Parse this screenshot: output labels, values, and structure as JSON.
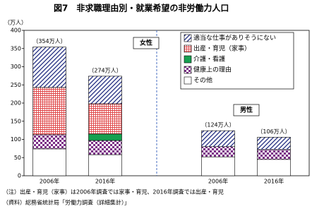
{
  "chart_data": {
    "type": "stacked-bar",
    "title": "図7　非求職理由別・就業希望の非労働力人口",
    "y_label": "（万人）",
    "categories": [
      "2006年",
      "2016年",
      "2006年",
      "2016年"
    ],
    "panels": [
      {
        "label": "女性",
        "categories": [
          0,
          1
        ]
      },
      {
        "label": "男性",
        "categories": [
          2,
          3
        ]
      }
    ],
    "total_labels": [
      "（354万人）",
      "（274万人）",
      "（124万人）",
      "（106万人）"
    ],
    "series": [
      {
        "name": "適当な仕事がありそうにない",
        "color": "#1f2a80",
        "pattern": "hatch",
        "values": [
          111,
          76,
          44,
          34
        ]
      },
      {
        "name": "出産・育児（家事）",
        "color": "#e0484a",
        "pattern": "grid",
        "values": [
          130,
          83,
          0,
          0
        ]
      },
      {
        "name": "介護・看護",
        "color": "#16a050",
        "pattern": "solid",
        "values": [
          0,
          18,
          0,
          0
        ]
      },
      {
        "name": "健康上の理由",
        "color": "#7b2f86",
        "pattern": "checker",
        "values": [
          39,
          39,
          28,
          27
        ]
      },
      {
        "name": "その他",
        "color": "#ffffff",
        "pattern": "none",
        "values": [
          74,
          58,
          52,
          45
        ]
      }
    ],
    "ylim": [
      0,
      400
    ],
    "yticks": [
      0,
      50,
      100,
      150,
      200,
      250,
      300,
      350,
      400
    ],
    "notes": [
      "（注）出産・育児（家事）は2006年調査では家事・育児、2016年調査では出産・育児",
      "（資料）総務省統計局「労働力調査（詳細集計）」"
    ]
  }
}
